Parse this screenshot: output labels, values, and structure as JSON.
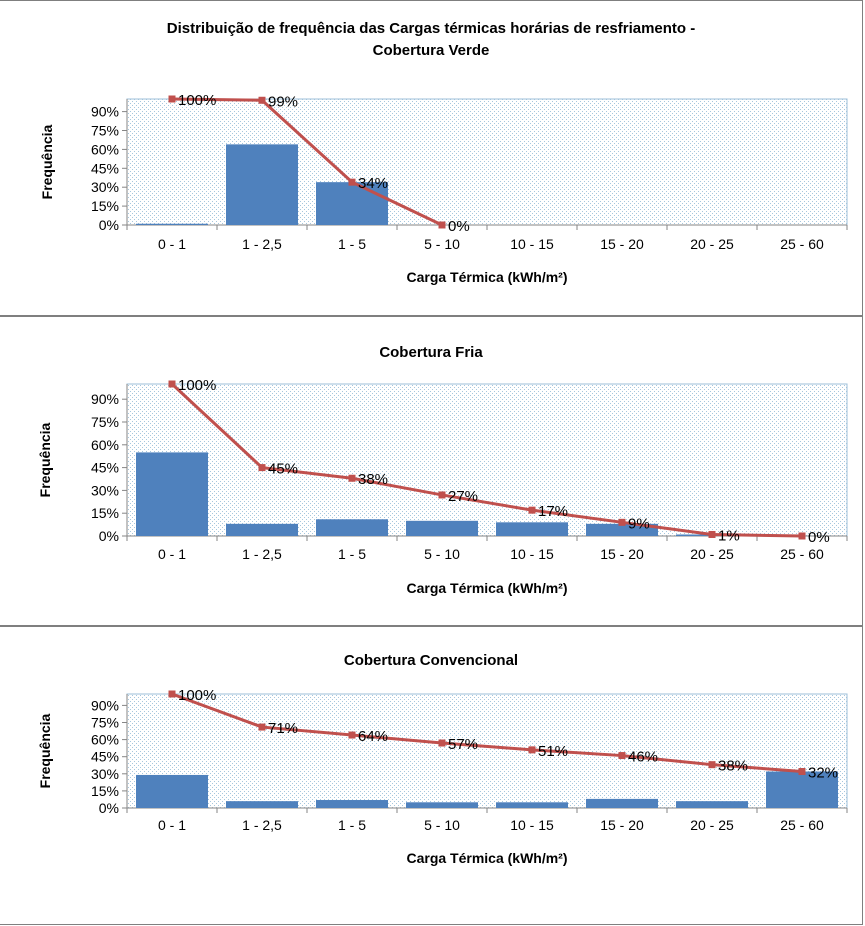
{
  "chart_data": [
    {
      "type": "bar",
      "title": "Distribuição de frequência das Cargas térmicas horárias de resfriamento -",
      "subtitle": "Cobertura Verde",
      "xlabel": "Carga Térmica (kWh/m²)",
      "ylabel": "Frequência",
      "ylim": [
        0,
        100
      ],
      "yticks": [
        "0%",
        "15%",
        "30%",
        "45%",
        "60%",
        "75%",
        "90%"
      ],
      "categories": [
        "0 - 1",
        "1 - 2,5",
        "1 - 5",
        "5 - 10",
        "10 - 15",
        "15 - 20",
        "20 - 25",
        "25 - 60"
      ],
      "bar_values": [
        1,
        64,
        34,
        0,
        0,
        0,
        0,
        0
      ],
      "line_values": [
        100,
        99,
        34,
        0,
        null,
        null,
        null,
        null
      ],
      "line_labels": [
        "100%",
        "99%",
        "34%",
        "0%",
        "",
        "",
        "",
        ""
      ],
      "grid": false,
      "legend": "none"
    },
    {
      "type": "bar",
      "title": "Cobertura Fria",
      "xlabel": "Carga Térmica (kWh/m²)",
      "ylabel": "Frequência",
      "ylim": [
        0,
        100
      ],
      "yticks": [
        "0%",
        "15%",
        "30%",
        "45%",
        "60%",
        "75%",
        "90%"
      ],
      "categories": [
        "0 - 1",
        "1 - 2,5",
        "1 - 5",
        "5 - 10",
        "10 - 15",
        "15 - 20",
        "20 - 25",
        "25 - 60"
      ],
      "bar_values": [
        55,
        8,
        11,
        10,
        9,
        8,
        1,
        0
      ],
      "line_values": [
        100,
        45,
        38,
        27,
        17,
        9,
        1,
        0
      ],
      "line_labels": [
        "100%",
        "45%",
        "38%",
        "27%",
        "17%",
        "9%",
        "1%",
        "0%"
      ],
      "grid": false,
      "legend": "none"
    },
    {
      "type": "bar",
      "title": "Cobertura Convencional",
      "xlabel": "Carga Térmica (kWh/m²)",
      "ylabel": "Frequência",
      "ylim": [
        0,
        100
      ],
      "yticks": [
        "0%",
        "15%",
        "30%",
        "45%",
        "60%",
        "75%",
        "90%"
      ],
      "categories": [
        "0 - 1",
        "1 - 2,5",
        "1 - 5",
        "5 - 10",
        "10 - 15",
        "15 - 20",
        "20 - 25",
        "25 - 60"
      ],
      "bar_values": [
        29,
        6,
        7,
        5,
        5,
        8,
        6,
        32
      ],
      "line_values": [
        100,
        71,
        64,
        57,
        51,
        46,
        38,
        32
      ],
      "line_labels": [
        "100%",
        "71%",
        "64%",
        "57%",
        "51%",
        "46%",
        "38%",
        "32%"
      ],
      "grid": false,
      "legend": "none"
    }
  ],
  "colors": {
    "bar": "#4f81bd",
    "line": "#c0504d",
    "plot_fill": "#dbe9f2",
    "axis": "#868686"
  }
}
